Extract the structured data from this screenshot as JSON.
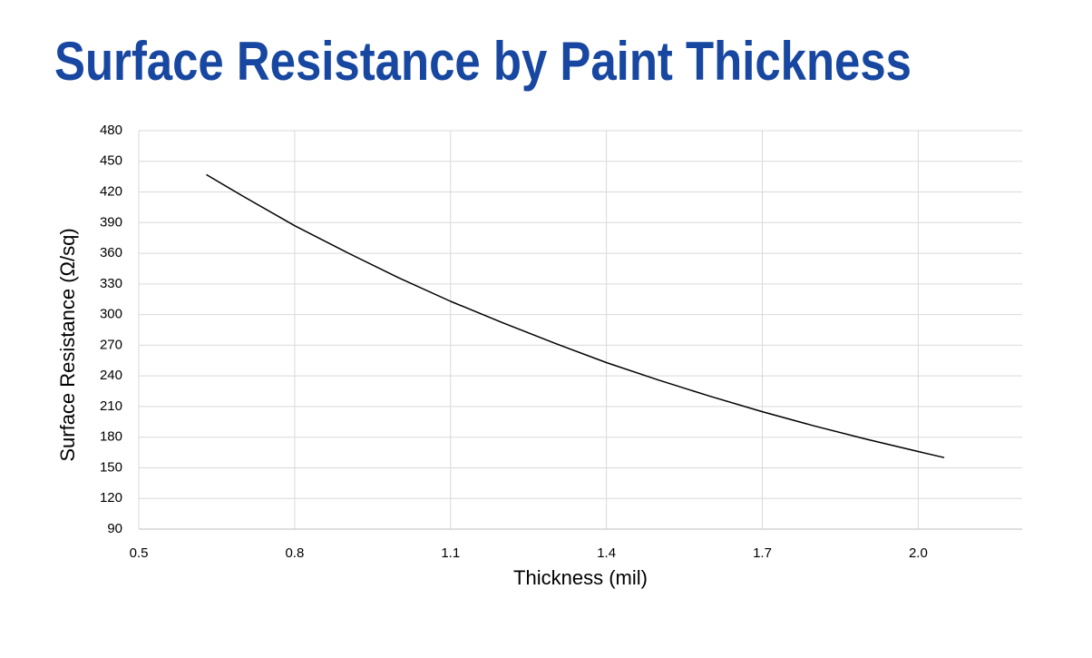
{
  "chart_data": {
    "type": "line",
    "title": "Surface Resistance by Paint Thickness",
    "x_label": "Thickness (mil)",
    "y_label": "Surface Resistance (Ω/sq)",
    "x": [
      0.63,
      0.7,
      0.8,
      0.9,
      1.0,
      1.1,
      1.2,
      1.3,
      1.4,
      1.5,
      1.6,
      1.7,
      1.8,
      1.9,
      2.0,
      2.05
    ],
    "values": [
      437,
      416,
      387,
      361,
      336,
      313,
      292,
      272,
      253,
      236,
      220,
      205,
      191,
      178,
      166,
      160
    ],
    "color": "#000000",
    "xlim": [
      0.5,
      2.2
    ],
    "xticks": [
      0.5,
      0.8,
      1.1,
      1.4,
      1.7,
      {
        "value": 2,
        "label": "2.0"
      }
    ],
    "ylim": [
      90,
      480
    ],
    "yticks": [
      90,
      120,
      150,
      180,
      210,
      240,
      270,
      300,
      330,
      360,
      390,
      420,
      450,
      480
    ],
    "grid": true
  }
}
